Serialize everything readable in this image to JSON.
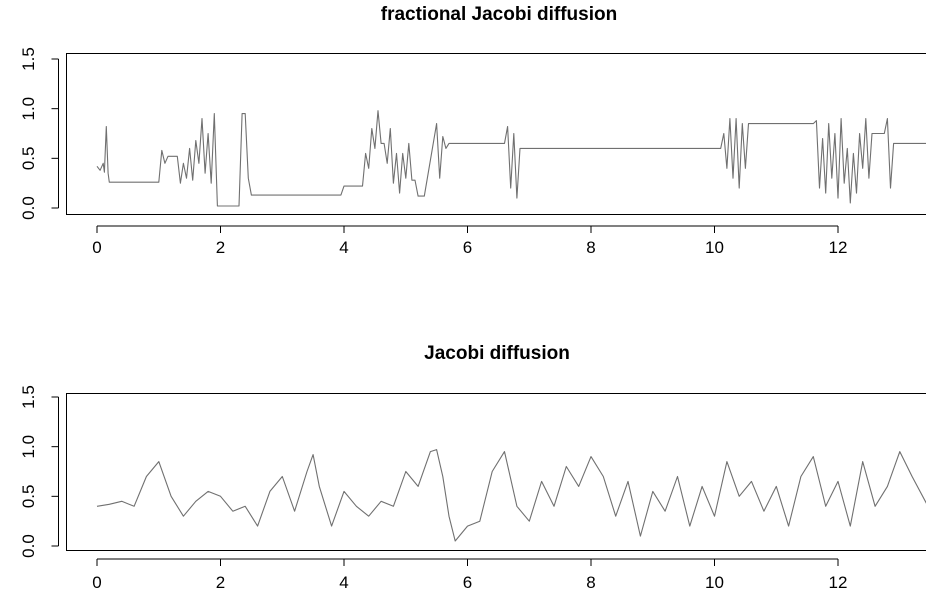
{
  "chart_data": [
    {
      "type": "line",
      "title": "fractional Jacobi diffusion",
      "xlabel": "",
      "ylabel": "",
      "xlim": [
        -0.5,
        13.5
      ],
      "ylim": [
        -0.05,
        1.5
      ],
      "x_ticks": [
        0,
        2,
        4,
        6,
        8,
        10,
        12
      ],
      "x_tick_labels": [
        "0",
        "2",
        "4",
        "6",
        "8",
        "10",
        "12"
      ],
      "y_ticks": [
        0.0,
        0.5,
        1.0,
        1.5
      ],
      "y_tick_labels": [
        "0.0",
        "0.5",
        "1.0",
        "1.5"
      ],
      "grid": false,
      "color": "#707070",
      "series": [
        {
          "x": [
            0,
            0.05,
            0.1,
            0.12,
            0.15,
            0.18,
            0.2,
            0.22,
            0.25,
            1.0,
            1.05,
            1.1,
            1.15,
            1.2,
            1.3,
            1.35,
            1.4,
            1.45,
            1.5,
            1.55,
            1.6,
            1.65,
            1.7,
            1.75,
            1.8,
            1.85,
            1.9,
            1.95,
            2.3,
            2.35,
            2.4,
            2.45,
            2.5,
            3.95,
            4.0,
            4.3,
            4.35,
            4.4,
            4.45,
            4.5,
            4.55,
            4.6,
            4.65,
            4.7,
            4.75,
            4.8,
            4.85,
            4.9,
            4.95,
            5.0,
            5.05,
            5.1,
            5.15,
            5.2,
            5.25,
            5.3,
            5.5,
            5.55,
            5.6,
            5.65,
            5.7,
            6.6,
            6.65,
            6.7,
            6.75,
            6.8,
            6.85,
            10.1,
            10.15,
            10.2,
            10.25,
            10.3,
            10.35,
            10.4,
            10.45,
            10.5,
            10.55,
            10.6,
            11.6,
            11.65,
            11.7,
            11.75,
            11.8,
            11.85,
            11.9,
            11.95,
            12.0,
            12.05,
            12.1,
            12.15,
            12.2,
            12.25,
            12.3,
            12.35,
            12.4,
            12.45,
            12.5,
            12.55,
            12.6,
            12.65,
            12.7,
            12.75,
            12.8,
            12.85,
            12.9,
            12.95,
            13.5
          ],
          "y": [
            0.42,
            0.38,
            0.45,
            0.36,
            0.82,
            0.35,
            0.26,
            0.26,
            0.26,
            0.26,
            0.58,
            0.45,
            0.52,
            0.52,
            0.52,
            0.25,
            0.45,
            0.3,
            0.6,
            0.28,
            0.68,
            0.45,
            0.9,
            0.35,
            0.75,
            0.25,
            0.95,
            0.02,
            0.02,
            0.95,
            0.95,
            0.3,
            0.13,
            0.13,
            0.22,
            0.22,
            0.55,
            0.4,
            0.8,
            0.6,
            0.98,
            0.65,
            0.65,
            0.45,
            0.8,
            0.25,
            0.55,
            0.15,
            0.55,
            0.3,
            0.65,
            0.28,
            0.28,
            0.12,
            0.12,
            0.12,
            0.85,
            0.3,
            0.72,
            0.6,
            0.65,
            0.65,
            0.82,
            0.2,
            0.75,
            0.1,
            0.6,
            0.6,
            0.75,
            0.4,
            0.9,
            0.3,
            0.9,
            0.2,
            0.85,
            0.4,
            0.85,
            0.85,
            0.85,
            0.88,
            0.2,
            0.7,
            0.15,
            0.85,
            0.3,
            0.75,
            0.1,
            0.9,
            0.25,
            0.6,
            0.05,
            0.55,
            0.15,
            0.75,
            0.4,
            0.9,
            0.3,
            0.75,
            0.75,
            0.75,
            0.75,
            0.75,
            0.9,
            0.2,
            0.65,
            0.65,
            0.65
          ]
        }
      ]
    },
    {
      "type": "line",
      "title": "Jacobi diffusion",
      "xlabel": "",
      "ylabel": "",
      "xlim": [
        -0.5,
        13.5
      ],
      "ylim": [
        -0.05,
        1.5
      ],
      "x_ticks": [
        0,
        2,
        4,
        6,
        8,
        10,
        12
      ],
      "x_tick_labels": [
        "0",
        "2",
        "4",
        "6",
        "8",
        "10",
        "12"
      ],
      "y_ticks": [
        0.0,
        0.5,
        1.0,
        1.5
      ],
      "y_tick_labels": [
        "0.0",
        "0.5",
        "1.0",
        "1.5"
      ],
      "grid": false,
      "color": "#707070",
      "series": [
        {
          "x": [
            0,
            0.2,
            0.4,
            0.6,
            0.8,
            1.0,
            1.2,
            1.4,
            1.6,
            1.8,
            2.0,
            2.2,
            2.4,
            2.6,
            2.8,
            3.0,
            3.2,
            3.4,
            3.5,
            3.6,
            3.8,
            4.0,
            4.2,
            4.4,
            4.6,
            4.8,
            5.0,
            5.2,
            5.4,
            5.5,
            5.6,
            5.7,
            5.8,
            6.0,
            6.2,
            6.4,
            6.6,
            6.8,
            7.0,
            7.2,
            7.4,
            7.6,
            7.8,
            8.0,
            8.2,
            8.4,
            8.6,
            8.8,
            9.0,
            9.2,
            9.4,
            9.6,
            9.8,
            10.0,
            10.2,
            10.4,
            10.6,
            10.8,
            11.0,
            11.2,
            11.4,
            11.6,
            11.8,
            12.0,
            12.2,
            12.4,
            12.6,
            12.8,
            13.0,
            13.2,
            13.5
          ],
          "y": [
            0.4,
            0.42,
            0.45,
            0.4,
            0.7,
            0.85,
            0.5,
            0.3,
            0.45,
            0.55,
            0.5,
            0.35,
            0.4,
            0.2,
            0.55,
            0.7,
            0.35,
            0.75,
            0.92,
            0.6,
            0.2,
            0.55,
            0.4,
            0.3,
            0.45,
            0.4,
            0.75,
            0.6,
            0.95,
            0.97,
            0.7,
            0.3,
            0.05,
            0.2,
            0.25,
            0.75,
            0.95,
            0.4,
            0.25,
            0.65,
            0.4,
            0.8,
            0.6,
            0.9,
            0.7,
            0.3,
            0.65,
            0.1,
            0.55,
            0.35,
            0.7,
            0.2,
            0.6,
            0.3,
            0.85,
            0.5,
            0.65,
            0.35,
            0.6,
            0.2,
            0.7,
            0.9,
            0.4,
            0.65,
            0.2,
            0.85,
            0.4,
            0.6,
            0.95,
            0.7,
            0.35
          ]
        }
      ]
    }
  ]
}
